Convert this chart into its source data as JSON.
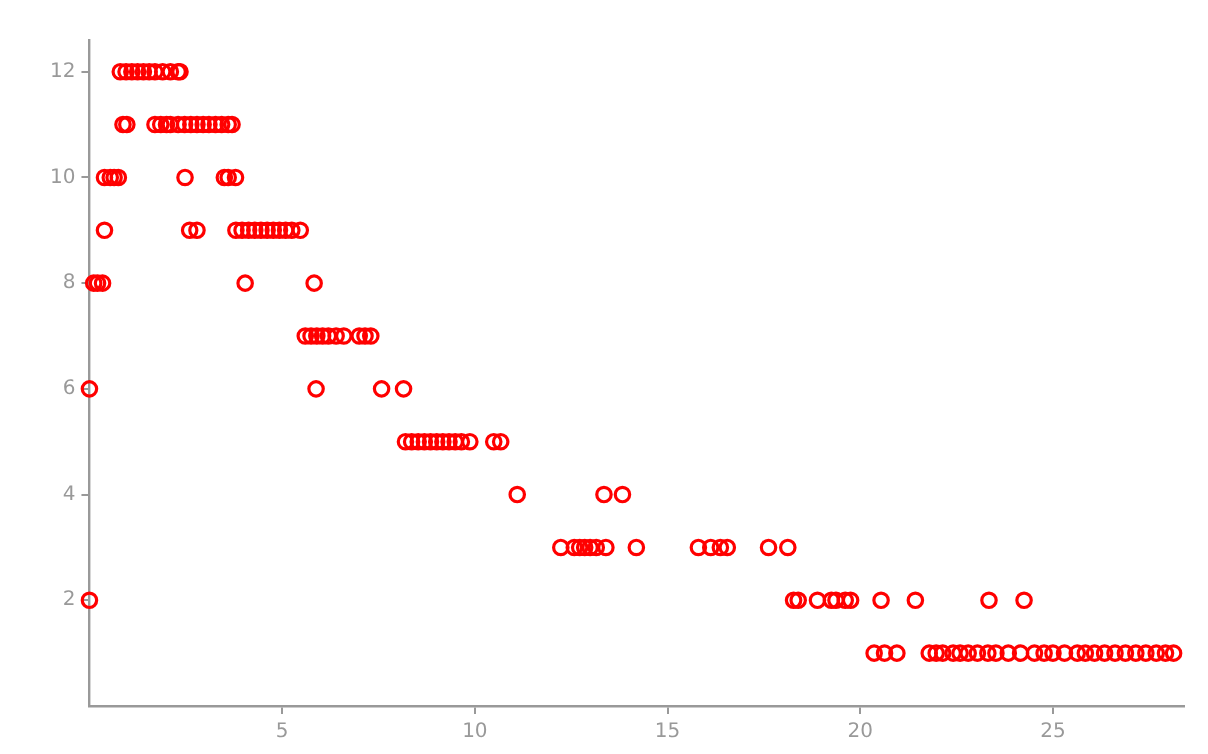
{
  "chart_data": {
    "type": "scatter",
    "marker": "circle",
    "grid": false,
    "legend": false,
    "xlim": [
      0,
      28.4
    ],
    "ylim": [
      0,
      12.6
    ],
    "xticks": [
      5,
      10,
      15,
      20,
      25
    ],
    "yticks": [
      2,
      4,
      6,
      8,
      10,
      12
    ],
    "series": [
      {
        "color": "#ff0000",
        "x": [
          0.8,
          0.95,
          1.1,
          1.25,
          1.4,
          1.55,
          1.7,
          1.9,
          2.1,
          2.3,
          2.35,
          0.87,
          0.97,
          1.7,
          1.85,
          2.0,
          2.1,
          2.3,
          2.47,
          2.63,
          2.79,
          2.95,
          3.1,
          3.27,
          3.43,
          3.6,
          3.7,
          0.39,
          0.54,
          0.64,
          0.75,
          2.48,
          3.5,
          3.6,
          3.79,
          0.39,
          2.6,
          2.79,
          3.8,
          3.96,
          4.13,
          4.29,
          4.45,
          4.61,
          4.77,
          4.93,
          5.09,
          5.25,
          5.47,
          0.11,
          0.21,
          0.34,
          4.04,
          5.83,
          5.6,
          5.75,
          5.9,
          6.05,
          6.2,
          6.4,
          6.6,
          7.0,
          7.15,
          7.3,
          0,
          5.88,
          7.58,
          8.15,
          8.2,
          8.36,
          8.53,
          8.69,
          8.85,
          9.01,
          9.17,
          9.33,
          9.49,
          9.65,
          9.87,
          10.49,
          10.67,
          11.1,
          13.35,
          13.83,
          12.23,
          12.58,
          12.72,
          12.85,
          12.99,
          13.15,
          13.4,
          14.19,
          15.8,
          16.12,
          16.37,
          16.55,
          17.62,
          18.12,
          0,
          18.27,
          18.39,
          18.89,
          19.25,
          19.37,
          19.61,
          19.75,
          20.54,
          21.43,
          23.34,
          24.25,
          20.36,
          20.63,
          20.95,
          21.79,
          21.97,
          22.14,
          22.41,
          22.59,
          22.8,
          23.04,
          23.31,
          23.52,
          23.84,
          24.16,
          24.52,
          24.77,
          25.0,
          25.3,
          25.63,
          25.84,
          26.08,
          26.34,
          26.61,
          26.88,
          27.15,
          27.41,
          27.68,
          27.92,
          28.13
        ],
        "values": [
          12,
          12,
          12,
          12,
          12,
          12,
          12,
          12,
          12,
          12,
          12,
          11,
          11,
          11,
          11,
          11,
          11,
          11,
          11,
          11,
          11,
          11,
          11,
          11,
          11,
          11,
          11,
          10,
          10,
          10,
          10,
          10,
          10,
          10,
          10,
          9,
          9,
          9,
          9,
          9,
          9,
          9,
          9,
          9,
          9,
          9,
          9,
          9,
          9,
          8,
          8,
          8,
          8,
          8,
          7,
          7,
          7,
          7,
          7,
          7,
          7,
          7,
          7,
          7,
          6,
          6,
          6,
          6,
          5,
          5,
          5,
          5,
          5,
          5,
          5,
          5,
          5,
          5,
          5,
          5,
          5,
          4,
          4,
          4,
          3,
          3,
          3,
          3,
          3,
          3,
          3,
          3,
          3,
          3,
          3,
          3,
          3,
          3,
          2,
          2,
          2,
          2,
          2,
          2,
          2,
          2,
          2,
          2,
          2,
          2,
          1,
          1,
          1,
          1,
          1,
          1,
          1,
          1,
          1,
          1,
          1,
          1,
          1,
          1,
          1,
          1,
          1,
          1,
          1,
          1,
          1,
          1,
          1,
          1,
          1,
          1,
          1,
          1,
          1
        ]
      }
    ]
  }
}
